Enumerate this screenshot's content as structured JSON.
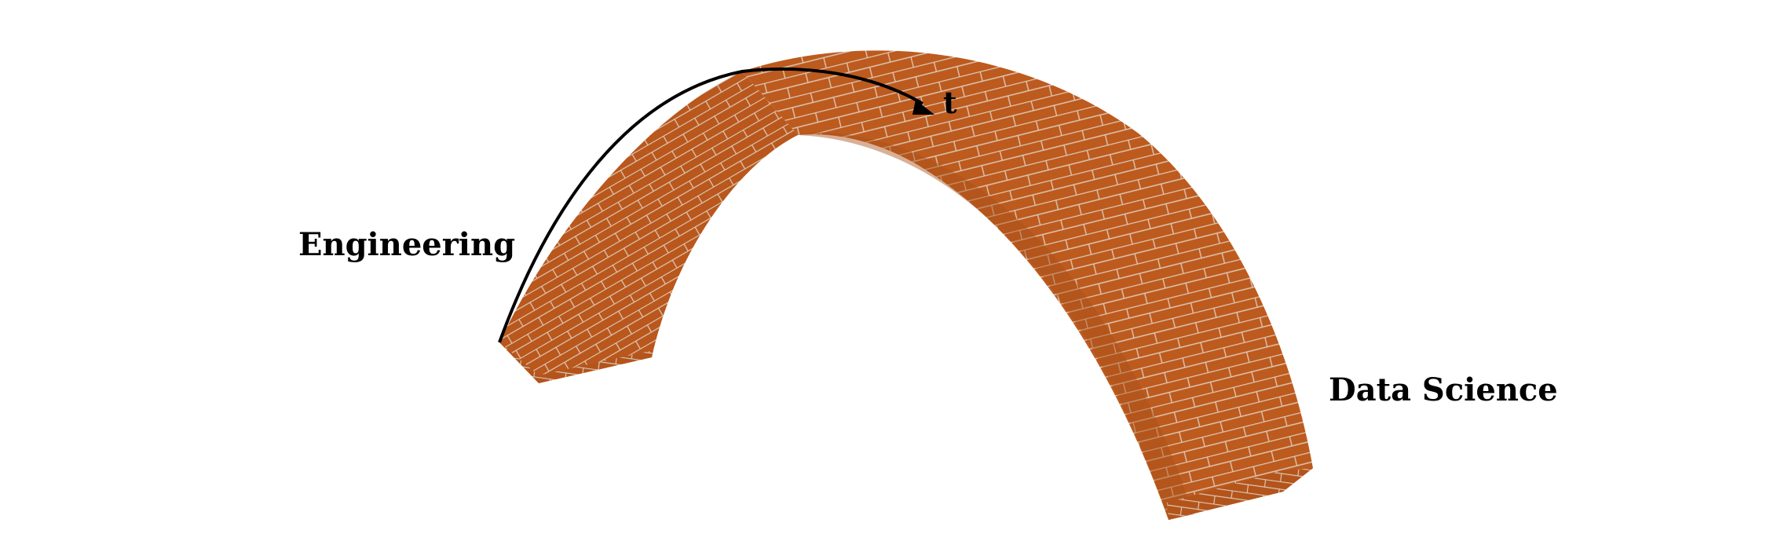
{
  "diagram": {
    "subject": "brick-arch",
    "labels": {
      "left": "Engineering",
      "right": "Data Science",
      "arrow": "t"
    },
    "colors": {
      "brick": "#bd5a1e",
      "brick_shade": "#a94f19",
      "mortar": "#d9c8b6",
      "outline": "#000000",
      "background": "#ffffff"
    }
  }
}
